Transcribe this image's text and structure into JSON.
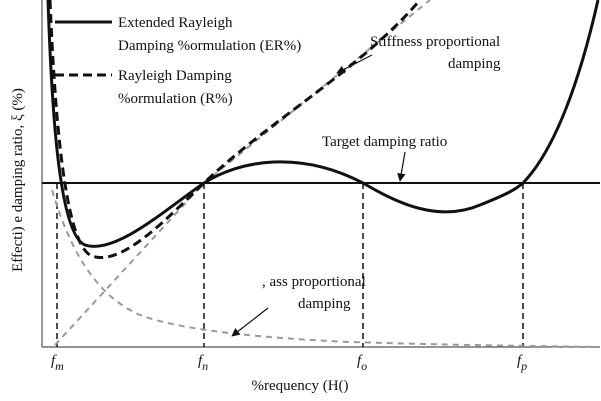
{
  "legend": {
    "items": [
      {
        "lines": [
          "Extended Rayleigh",
          "Damping %ormulation (ER%)"
        ]
      },
      {
        "lines": [
          "Rayleigh Damping",
          "%ormulation (R%)"
        ]
      }
    ]
  },
  "annotations": {
    "stiffness": [
      "Stiffness proportional",
      "damping"
    ],
    "target": "Target damping ratio",
    "mass": [
      ", ass proportional",
      "damping"
    ]
  },
  "axes": {
    "y_label": "Effecti) e damping ratio, ξ (%)",
    "x_label": "%requency (H()",
    "ticks": [
      {
        "base": "f",
        "sub": "m"
      },
      {
        "base": "f",
        "sub": "n"
      },
      {
        "base": "f",
        "sub": "o"
      },
      {
        "base": "f",
        "sub": "p"
      }
    ]
  }
}
